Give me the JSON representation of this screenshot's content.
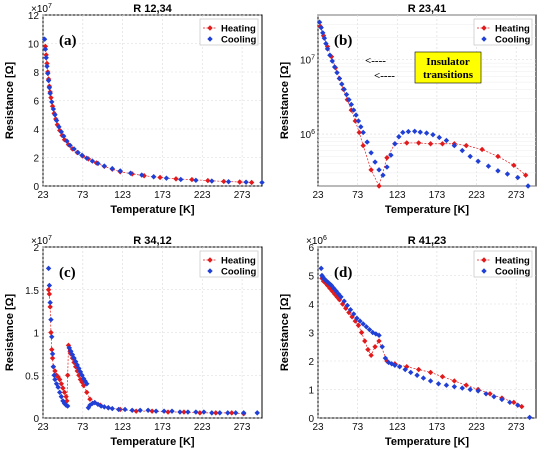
{
  "chart_data": [
    {
      "type": "scatter",
      "title": "R 12,34",
      "panel_label": "(a)",
      "xlabel": "Temperature [K]",
      "ylabel": "Resistance [Ω]",
      "y_exponent": "×10^7",
      "y_exponent_base": "×10",
      "y_exponent_power": "7",
      "yscale": "linear",
      "xlim": [
        23,
        298
      ],
      "ylim": [
        0,
        12
      ],
      "xticks": [
        23,
        73,
        123,
        173,
        223,
        273
      ],
      "yticks": [
        0,
        2,
        4,
        6,
        8,
        10,
        12
      ],
      "grid": true,
      "legend_position": "top-right",
      "annotation": null,
      "series": [
        {
          "name": "Heating",
          "color": "#e31a1c",
          "line": true,
          "x": [
            26,
            27,
            28,
            29,
            30,
            31,
            32,
            33,
            35,
            37,
            39,
            41,
            44,
            47,
            50,
            55,
            60,
            66,
            73,
            80,
            90,
            100,
            110,
            120,
            135,
            150,
            170,
            190,
            210,
            230,
            250,
            270,
            285
          ],
          "y": [
            9.8,
            9.2,
            8.6,
            8.0,
            7.5,
            7.0,
            6.6,
            6.2,
            5.6,
            5.1,
            4.7,
            4.3,
            3.9,
            3.55,
            3.25,
            2.9,
            2.6,
            2.35,
            2.1,
            1.9,
            1.62,
            1.38,
            1.18,
            1.0,
            0.85,
            0.72,
            0.6,
            0.5,
            0.45,
            0.38,
            0.32,
            0.28,
            0.25
          ]
        },
        {
          "name": "Cooling",
          "color": "#1f3fd6",
          "line": false,
          "x": [
            25,
            26,
            27,
            28,
            29,
            30,
            31,
            32,
            34,
            36,
            38,
            40,
            43,
            46,
            49,
            53,
            57,
            62,
            67,
            72,
            78,
            85,
            92,
            100,
            110,
            120,
            133,
            147,
            162,
            178,
            196,
            215,
            235,
            256,
            278,
            298
          ],
          "y": [
            10.3,
            9.6,
            9.0,
            8.4,
            7.9,
            7.4,
            6.9,
            6.5,
            5.9,
            5.4,
            5.0,
            4.6,
            4.15,
            3.8,
            3.5,
            3.15,
            2.85,
            2.6,
            2.35,
            2.15,
            1.95,
            1.75,
            1.58,
            1.4,
            1.22,
            1.06,
            0.9,
            0.77,
            0.65,
            0.55,
            0.46,
            0.4,
            0.35,
            0.3,
            0.27,
            0.25
          ]
        }
      ]
    },
    {
      "type": "scatter",
      "title": "R 23,41",
      "panel_label": "(b)",
      "xlabel": "Temperature [K]",
      "ylabel": "Resistance [Ω]",
      "y_exponent": "",
      "yscale": "log",
      "xlim": [
        23,
        298
      ],
      "ylim": [
        200000,
        40000000
      ],
      "xticks": [
        23,
        73,
        123,
        173,
        223,
        273
      ],
      "ytick_labels": [
        {
          "base": "10",
          "power": "7",
          "value": 10000000
        },
        {
          "base": "10",
          "power": "6",
          "value": 1000000
        }
      ],
      "grid": true,
      "legend_position": "top-right",
      "annotation": {
        "text_line1": "Insulator",
        "text_line2": "transitions",
        "arrow1": "<----",
        "arrow2": "<----"
      },
      "series": [
        {
          "name": "Heating",
          "color": "#e31a1c",
          "line": true,
          "x": [
            26,
            30,
            35,
            40,
            45,
            50,
            55,
            60,
            65,
            70,
            75,
            80,
            90,
            100,
            110,
            120,
            135,
            150,
            165,
            180,
            195,
            210,
            230,
            250,
            270,
            285
          ],
          "y": [
            28000000,
            21000000,
            15000000,
            11000000,
            7800000,
            5600000,
            4000000,
            2900000,
            2100000,
            1500000,
            1050000,
            700000,
            330000,
            200000,
            480000,
            740000,
            760000,
            760000,
            740000,
            740000,
            740000,
            700000,
            620000,
            500000,
            380000,
            280000
          ]
        },
        {
          "name": "Cooling",
          "color": "#1f3fd6",
          "line": false,
          "x": [
            25,
            27,
            29,
            31,
            33,
            35,
            38,
            41,
            44,
            47,
            50,
            53,
            56,
            59,
            62,
            65,
            68,
            71,
            74,
            77,
            80,
            85,
            90,
            95,
            100,
            105,
            110,
            115,
            120,
            125,
            130,
            137,
            145,
            152,
            160,
            168,
            176,
            185,
            195,
            205,
            215,
            225,
            238,
            250,
            262,
            275,
            288
          ],
          "y": [
            32000000,
            27000000,
            23000000,
            19500000,
            16500000,
            14000000,
            11500000,
            9600000,
            8000000,
            6700000,
            5600000,
            4700000,
            4000000,
            3400000,
            2900000,
            2500000,
            2100000,
            1800000,
            1500000,
            1250000,
            1050000,
            780000,
            560000,
            420000,
            330000,
            280000,
            360000,
            520000,
            740000,
            920000,
            1050000,
            1080000,
            1090000,
            1060000,
            1030000,
            980000,
            900000,
            820000,
            700000,
            600000,
            500000,
            430000,
            370000,
            320000,
            290000,
            260000,
            200000
          ]
        }
      ]
    },
    {
      "type": "scatter",
      "title": "R 34,12",
      "panel_label": "(c)",
      "xlabel": "Temperature [K]",
      "ylabel": "Resistance [Ω]",
      "y_exponent": "×10^7",
      "y_exponent_base": "×10",
      "y_exponent_power": "7",
      "yscale": "linear",
      "xlim": [
        23,
        298
      ],
      "ylim": [
        0,
        2
      ],
      "xticks": [
        23,
        73,
        123,
        173,
        223,
        273
      ],
      "yticks": [
        0,
        0.5,
        1,
        1.5,
        2
      ],
      "grid": true,
      "legend_position": "top-right",
      "annotation": null,
      "series": [
        {
          "name": "Heating",
          "color": "#e31a1c",
          "line": true,
          "x": [
            30,
            31,
            32,
            33,
            34,
            35,
            36,
            38,
            40,
            42,
            44,
            46,
            48,
            50,
            52,
            53,
            54,
            55,
            56,
            57,
            58,
            60,
            62,
            64,
            66,
            68,
            70,
            72,
            74,
            78,
            82,
            88,
            95,
            105,
            120,
            140,
            160,
            180,
            200,
            220,
            240,
            260,
            275
          ],
          "y": [
            1.5,
            1.45,
            1.3,
            1.0,
            0.8,
            0.7,
            0.6,
            0.55,
            0.5,
            0.48,
            0.45,
            0.4,
            0.35,
            0.3,
            0.25,
            0.2,
            0.5,
            0.85,
            0.82,
            0.78,
            0.75,
            0.7,
            0.65,
            0.6,
            0.55,
            0.5,
            0.45,
            0.42,
            0.38,
            0.3,
            0.22,
            0.18,
            0.15,
            0.12,
            0.1,
            0.08,
            0.08,
            0.07,
            0.07,
            0.06,
            0.06,
            0.06,
            0.05
          ]
        },
        {
          "name": "Cooling",
          "color": "#1f3fd6",
          "line": false,
          "x": [
            30,
            31,
            32,
            33,
            34,
            35,
            36,
            37,
            38,
            40,
            42,
            44,
            46,
            48,
            50,
            52,
            54,
            56,
            58,
            60,
            62,
            64,
            66,
            68,
            70,
            72,
            74,
            76,
            78,
            80,
            82,
            85,
            88,
            92,
            96,
            100,
            105,
            110,
            118,
            126,
            135,
            145,
            155,
            165,
            175,
            185,
            195,
            205,
            215,
            225,
            235,
            245,
            255,
            265,
            275,
            292
          ],
          "y": [
            1.75,
            1.55,
            1.35,
            1.15,
            0.95,
            0.75,
            0.6,
            0.5,
            0.45,
            0.4,
            0.36,
            0.3,
            0.25,
            0.2,
            0.17,
            0.15,
            0.14,
            0.82,
            0.78,
            0.74,
            0.7,
            0.66,
            0.62,
            0.58,
            0.54,
            0.5,
            0.46,
            0.43,
            0.4,
            0.12,
            0.15,
            0.17,
            0.18,
            0.16,
            0.14,
            0.13,
            0.12,
            0.11,
            0.1,
            0.1,
            0.09,
            0.09,
            0.09,
            0.08,
            0.08,
            0.08,
            0.07,
            0.07,
            0.07,
            0.07,
            0.06,
            0.06,
            0.06,
            0.06,
            0.06,
            0.06
          ]
        }
      ]
    },
    {
      "type": "scatter",
      "title": "R 41,23",
      "panel_label": "(d)",
      "xlabel": "Temperature [K]",
      "ylabel": "Resistance [Ω]",
      "y_exponent": "×10^6",
      "y_exponent_base": "×10",
      "y_exponent_power": "6",
      "yscale": "linear",
      "xlim": [
        23,
        298
      ],
      "ylim": [
        0,
        6
      ],
      "xticks": [
        23,
        73,
        123,
        173,
        223,
        273
      ],
      "yticks": [
        0,
        1,
        2,
        3,
        4,
        5,
        6
      ],
      "grid": true,
      "legend_position": "top-right",
      "annotation": null,
      "series": [
        {
          "name": "Heating",
          "color": "#e31a1c",
          "line": true,
          "x": [
            28,
            30,
            32,
            35,
            38,
            41,
            44,
            47,
            50,
            54,
            58,
            62,
            66,
            70,
            74,
            78,
            82,
            86,
            90,
            95,
            100,
            110,
            120,
            135,
            150,
            165,
            180,
            195,
            210,
            225,
            240,
            255,
            270,
            280
          ],
          "y": [
            4.9,
            4.8,
            4.75,
            4.65,
            4.55,
            4.45,
            4.35,
            4.25,
            4.15,
            4.0,
            3.85,
            3.7,
            3.55,
            3.4,
            3.25,
            3.0,
            2.7,
            2.4,
            2.2,
            2.5,
            2.7,
            2.0,
            1.9,
            1.8,
            1.7,
            1.6,
            1.45,
            1.3,
            1.15,
            1.0,
            0.85,
            0.7,
            0.55,
            0.4
          ]
        },
        {
          "name": "Cooling",
          "color": "#1f3fd6",
          "line": false,
          "x": [
            27,
            28,
            29,
            30,
            31,
            32,
            34,
            36,
            38,
            40,
            43,
            46,
            49,
            52,
            56,
            60,
            64,
            68,
            72,
            76,
            80,
            84,
            88,
            92,
            96,
            100,
            104,
            108,
            112,
            116,
            120,
            126,
            133,
            140,
            148,
            156,
            165,
            175,
            185,
            195,
            205,
            215,
            225,
            235,
            245,
            255,
            265,
            275,
            290
          ],
          "y": [
            5.25,
            5.0,
            4.95,
            4.9,
            4.88,
            4.85,
            4.8,
            4.75,
            4.7,
            4.65,
            4.55,
            4.45,
            4.35,
            4.25,
            4.1,
            3.95,
            3.8,
            3.65,
            3.5,
            3.4,
            3.3,
            3.2,
            3.1,
            3.0,
            2.95,
            2.9,
            2.5,
            2.1,
            1.95,
            1.9,
            1.85,
            1.8,
            1.7,
            1.6,
            1.5,
            1.4,
            1.3,
            1.2,
            1.15,
            1.1,
            1.05,
            1.0,
            0.95,
            0.85,
            0.75,
            0.65,
            0.55,
            0.45,
            0.02
          ]
        }
      ]
    }
  ]
}
